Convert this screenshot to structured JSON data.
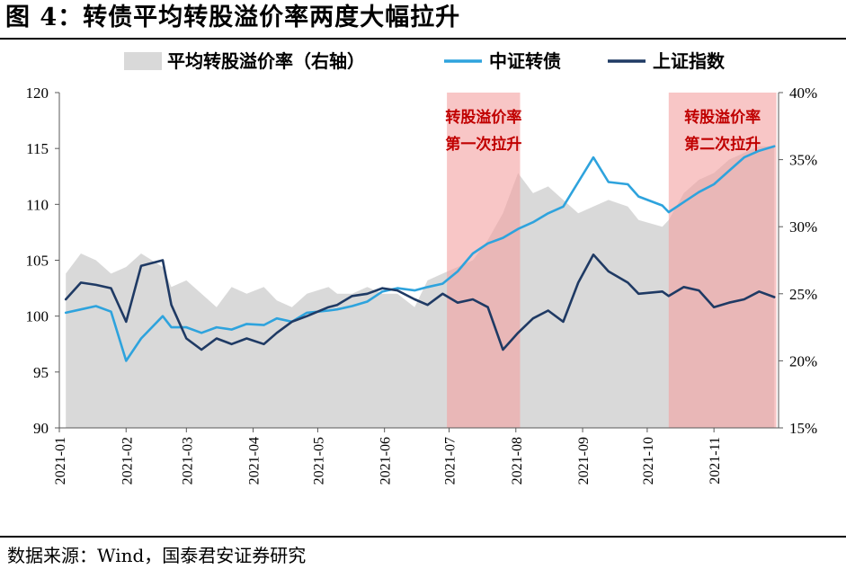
{
  "figure": {
    "title": "图 4：转债平均转股溢价率两度大幅拉升",
    "source": "数据来源：Wind，国泰君安证券研究"
  },
  "colors": {
    "premium_area": "#d9d9d9",
    "convertible_index": "#2ea3dd",
    "shanghai_index": "#1f3a64",
    "band_fill": "#f4a0a0",
    "band_text": "#c00000",
    "axis": "#595959"
  },
  "chart_data": {
    "type": "line",
    "title": "",
    "legend": {
      "placement": "top",
      "entries": [
        "平均转股溢价率（右轴）",
        "中证转债",
        "上证指数"
      ]
    },
    "x_axis": {
      "ticks": [
        "2021-01",
        "2021-02",
        "2021-03",
        "2021-04",
        "2021-05",
        "2021-06",
        "2021-07",
        "2021-08",
        "2021-09",
        "2021-10",
        "2021-11"
      ],
      "range": [
        "2021-01-01",
        "2021-12-01"
      ]
    },
    "y_left": {
      "range": [
        90,
        120
      ],
      "ticks": [
        "90",
        "95",
        "100",
        "105",
        "110",
        "115",
        "120"
      ]
    },
    "y_right": {
      "range": [
        15,
        40
      ],
      "ticks": [
        "15%",
        "20%",
        "25%",
        "30%",
        "35%",
        "40%"
      ]
    },
    "bands": [
      {
        "start": "2021-06-30",
        "end": "2021-08-03",
        "label_line1": "转股溢价率",
        "label_line2": "第一次拉升"
      },
      {
        "start": "2021-10-11",
        "end": "2021-11-30",
        "label_line1": "转股溢价率",
        "label_line2": "第二次拉升"
      }
    ],
    "series": [
      {
        "name": "平均转股溢价率（右轴）",
        "type": "area",
        "axis": "right",
        "x": [
          "2021-01-04",
          "2021-01-11",
          "2021-01-18",
          "2021-01-25",
          "2021-02-01",
          "2021-02-08",
          "2021-02-18",
          "2021-02-22",
          "2021-03-01",
          "2021-03-08",
          "2021-03-15",
          "2021-03-22",
          "2021-03-29",
          "2021-04-06",
          "2021-04-12",
          "2021-04-19",
          "2021-04-26",
          "2021-05-06",
          "2021-05-10",
          "2021-05-17",
          "2021-05-24",
          "2021-05-31",
          "2021-06-07",
          "2021-06-15",
          "2021-06-21",
          "2021-06-28",
          "2021-07-05",
          "2021-07-12",
          "2021-07-19",
          "2021-07-26",
          "2021-08-02",
          "2021-08-09",
          "2021-08-16",
          "2021-08-23",
          "2021-08-30",
          "2021-09-06",
          "2021-09-13",
          "2021-09-22",
          "2021-09-27",
          "2021-10-08",
          "2021-10-11",
          "2021-10-18",
          "2021-10-25",
          "2021-11-01",
          "2021-11-08",
          "2021-11-15",
          "2021-11-22",
          "2021-11-29"
        ],
        "values": [
          26.5,
          28.0,
          27.5,
          26.5,
          27.0,
          28.0,
          27.0,
          25.5,
          26.0,
          25.0,
          24.0,
          25.5,
          25.0,
          25.5,
          24.5,
          24.0,
          25.0,
          25.5,
          25.0,
          25.0,
          25.5,
          25.0,
          25.0,
          24.0,
          26.0,
          26.5,
          27.0,
          27.5,
          29.0,
          31.0,
          34.0,
          32.5,
          33.0,
          32.0,
          31.0,
          31.5,
          32.0,
          31.5,
          30.5,
          30.0,
          30.5,
          32.5,
          33.5,
          34.0,
          35.0,
          35.5,
          36.0,
          36.0
        ]
      },
      {
        "name": "中证转债",
        "type": "line",
        "axis": "left",
        "x": [
          "2021-01-04",
          "2021-01-11",
          "2021-01-18",
          "2021-01-25",
          "2021-02-01",
          "2021-02-08",
          "2021-02-18",
          "2021-02-22",
          "2021-03-01",
          "2021-03-08",
          "2021-03-15",
          "2021-03-22",
          "2021-03-29",
          "2021-04-06",
          "2021-04-12",
          "2021-04-19",
          "2021-04-26",
          "2021-05-06",
          "2021-05-10",
          "2021-05-17",
          "2021-05-24",
          "2021-05-31",
          "2021-06-07",
          "2021-06-15",
          "2021-06-21",
          "2021-06-28",
          "2021-07-05",
          "2021-07-12",
          "2021-07-19",
          "2021-07-26",
          "2021-08-02",
          "2021-08-09",
          "2021-08-16",
          "2021-08-23",
          "2021-08-30",
          "2021-09-06",
          "2021-09-13",
          "2021-09-22",
          "2021-09-27",
          "2021-10-08",
          "2021-10-11",
          "2021-10-18",
          "2021-10-25",
          "2021-11-01",
          "2021-11-08",
          "2021-11-15",
          "2021-11-22",
          "2021-11-29"
        ],
        "values": [
          100.3,
          100.6,
          100.9,
          100.4,
          96.0,
          98.0,
          100.0,
          99.0,
          99.0,
          98.5,
          99.0,
          98.8,
          99.3,
          99.2,
          99.8,
          99.5,
          100.3,
          100.5,
          100.6,
          100.9,
          101.3,
          102.2,
          102.5,
          102.3,
          102.6,
          102.9,
          104.0,
          105.6,
          106.5,
          107.0,
          107.8,
          108.4,
          109.2,
          109.8,
          112.0,
          114.2,
          112.0,
          111.8,
          110.7,
          109.9,
          109.3,
          110.2,
          111.1,
          111.8,
          113.0,
          114.2,
          114.8,
          115.2
        ]
      },
      {
        "name": "上证指数",
        "type": "line",
        "axis": "left",
        "x": [
          "2021-01-04",
          "2021-01-11",
          "2021-01-18",
          "2021-01-25",
          "2021-02-01",
          "2021-02-08",
          "2021-02-18",
          "2021-02-22",
          "2021-03-01",
          "2021-03-08",
          "2021-03-15",
          "2021-03-22",
          "2021-03-29",
          "2021-04-06",
          "2021-04-12",
          "2021-04-19",
          "2021-04-26",
          "2021-05-06",
          "2021-05-10",
          "2021-05-17",
          "2021-05-24",
          "2021-05-31",
          "2021-06-07",
          "2021-06-15",
          "2021-06-21",
          "2021-06-28",
          "2021-07-05",
          "2021-07-12",
          "2021-07-19",
          "2021-07-26",
          "2021-08-02",
          "2021-08-09",
          "2021-08-16",
          "2021-08-23",
          "2021-08-30",
          "2021-09-06",
          "2021-09-13",
          "2021-09-22",
          "2021-09-27",
          "2021-10-08",
          "2021-10-11",
          "2021-10-18",
          "2021-10-25",
          "2021-11-01",
          "2021-11-08",
          "2021-11-15",
          "2021-11-22",
          "2021-11-29"
        ],
        "values": [
          101.5,
          103.0,
          102.8,
          102.5,
          99.5,
          104.5,
          105.0,
          101.0,
          98.0,
          97.0,
          98.0,
          97.5,
          98.0,
          97.5,
          98.5,
          99.5,
          100.0,
          100.8,
          101.0,
          101.8,
          102.0,
          102.5,
          102.3,
          101.5,
          101.0,
          102.0,
          101.2,
          101.5,
          100.8,
          97.0,
          98.5,
          99.8,
          100.5,
          99.5,
          103.0,
          105.5,
          104.0,
          103.0,
          102.0,
          102.2,
          101.8,
          102.6,
          102.3,
          100.8,
          101.2,
          101.5,
          102.2,
          101.7
        ]
      }
    ]
  }
}
